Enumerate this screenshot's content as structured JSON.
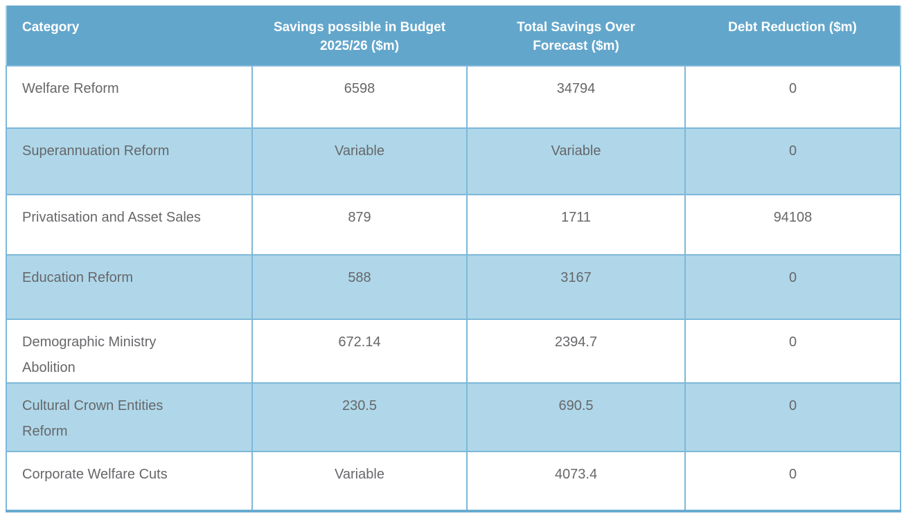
{
  "table": {
    "headers": [
      "Category",
      "Savings possible in Budget 2025/26 ($m)",
      "Total Savings Over Forecast ($m)",
      "Debt Reduction ($m)"
    ],
    "rows": [
      [
        "Welfare Reform",
        "6598",
        "34794",
        "0"
      ],
      [
        "Superannuation Reform",
        "Variable",
        "Variable",
        "0"
      ],
      [
        "Privatisation and Asset Sales",
        "879",
        "1711",
        "94108"
      ],
      [
        "Education Reform",
        "588",
        "3167",
        "0"
      ],
      [
        "Demographic Ministry\nAbolition",
        "672.14",
        "2394.7",
        "0"
      ],
      [
        "Cultural Crown Entities\nReform",
        "230.5",
        "690.5",
        "0"
      ],
      [
        "Corporate Welfare Cuts",
        "Variable",
        "4073.4",
        "0"
      ]
    ]
  },
  "colors": {
    "header_background": "#63a6cb",
    "header_text": "#ffffff",
    "alt_row_background": "#afd7e9",
    "cell_border": "#7cb8da",
    "outer_border": "#a5cfe5",
    "bottom_border": "#68abd0",
    "body_text": "#66676a"
  }
}
